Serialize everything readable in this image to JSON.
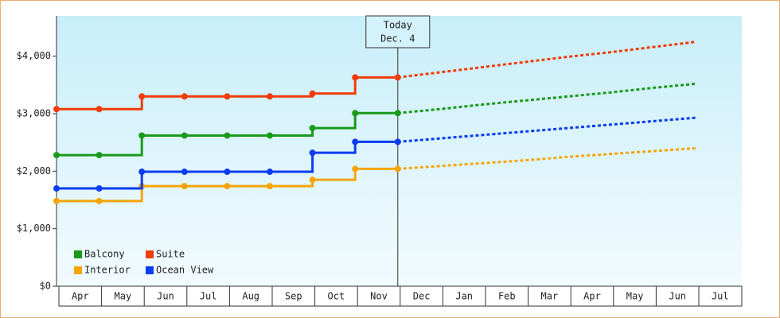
{
  "chart_data": {
    "type": "step",
    "categories": [
      "Apr",
      "May",
      "Jun",
      "Jul",
      "Aug",
      "Sep",
      "Oct",
      "Nov",
      "Dec",
      "Jan",
      "Feb",
      "Mar",
      "Apr",
      "May",
      "Jun",
      "Jul"
    ],
    "series": [
      {
        "name": "Balcony",
        "color": "#1a9a1a",
        "values": [
          2280,
          2280,
          2620,
          2620,
          2620,
          2620,
          2750,
          3010,
          3010,
          3080,
          3160,
          3230,
          3300,
          3370,
          3450,
          3520
        ]
      },
      {
        "name": "Suite",
        "color": "#f03c0a",
        "values": [
          3080,
          3080,
          3300,
          3300,
          3300,
          3300,
          3350,
          3630,
          3630,
          3720,
          3810,
          3900,
          3990,
          4070,
          4160,
          4250
        ]
      },
      {
        "name": "Interior",
        "color": "#f5a50a",
        "values": [
          1480,
          1480,
          1740,
          1740,
          1740,
          1740,
          1850,
          2040,
          2040,
          2090,
          2140,
          2190,
          2250,
          2300,
          2350,
          2400
        ]
      },
      {
        "name": "Ocean View",
        "color": "#0a3cf0",
        "values": [
          1700,
          1700,
          1990,
          1990,
          1990,
          1990,
          2320,
          2510,
          2510,
          2570,
          2630,
          2690,
          2750,
          2810,
          2870,
          2930
        ]
      }
    ],
    "annotation": {
      "text": "Today",
      "subtext": "Dec. 4",
      "category": "Dec"
    },
    "ylim": [
      0,
      4700
    ],
    "yticks": [
      {
        "value": 0,
        "label": "$0"
      },
      {
        "value": 1000,
        "label": "$1,000"
      },
      {
        "value": 2000,
        "label": "$2,000"
      },
      {
        "value": 3000,
        "label": "$3,000"
      },
      {
        "value": 4000,
        "label": "$4,000"
      }
    ],
    "grid": false,
    "legend": "lower-left"
  }
}
